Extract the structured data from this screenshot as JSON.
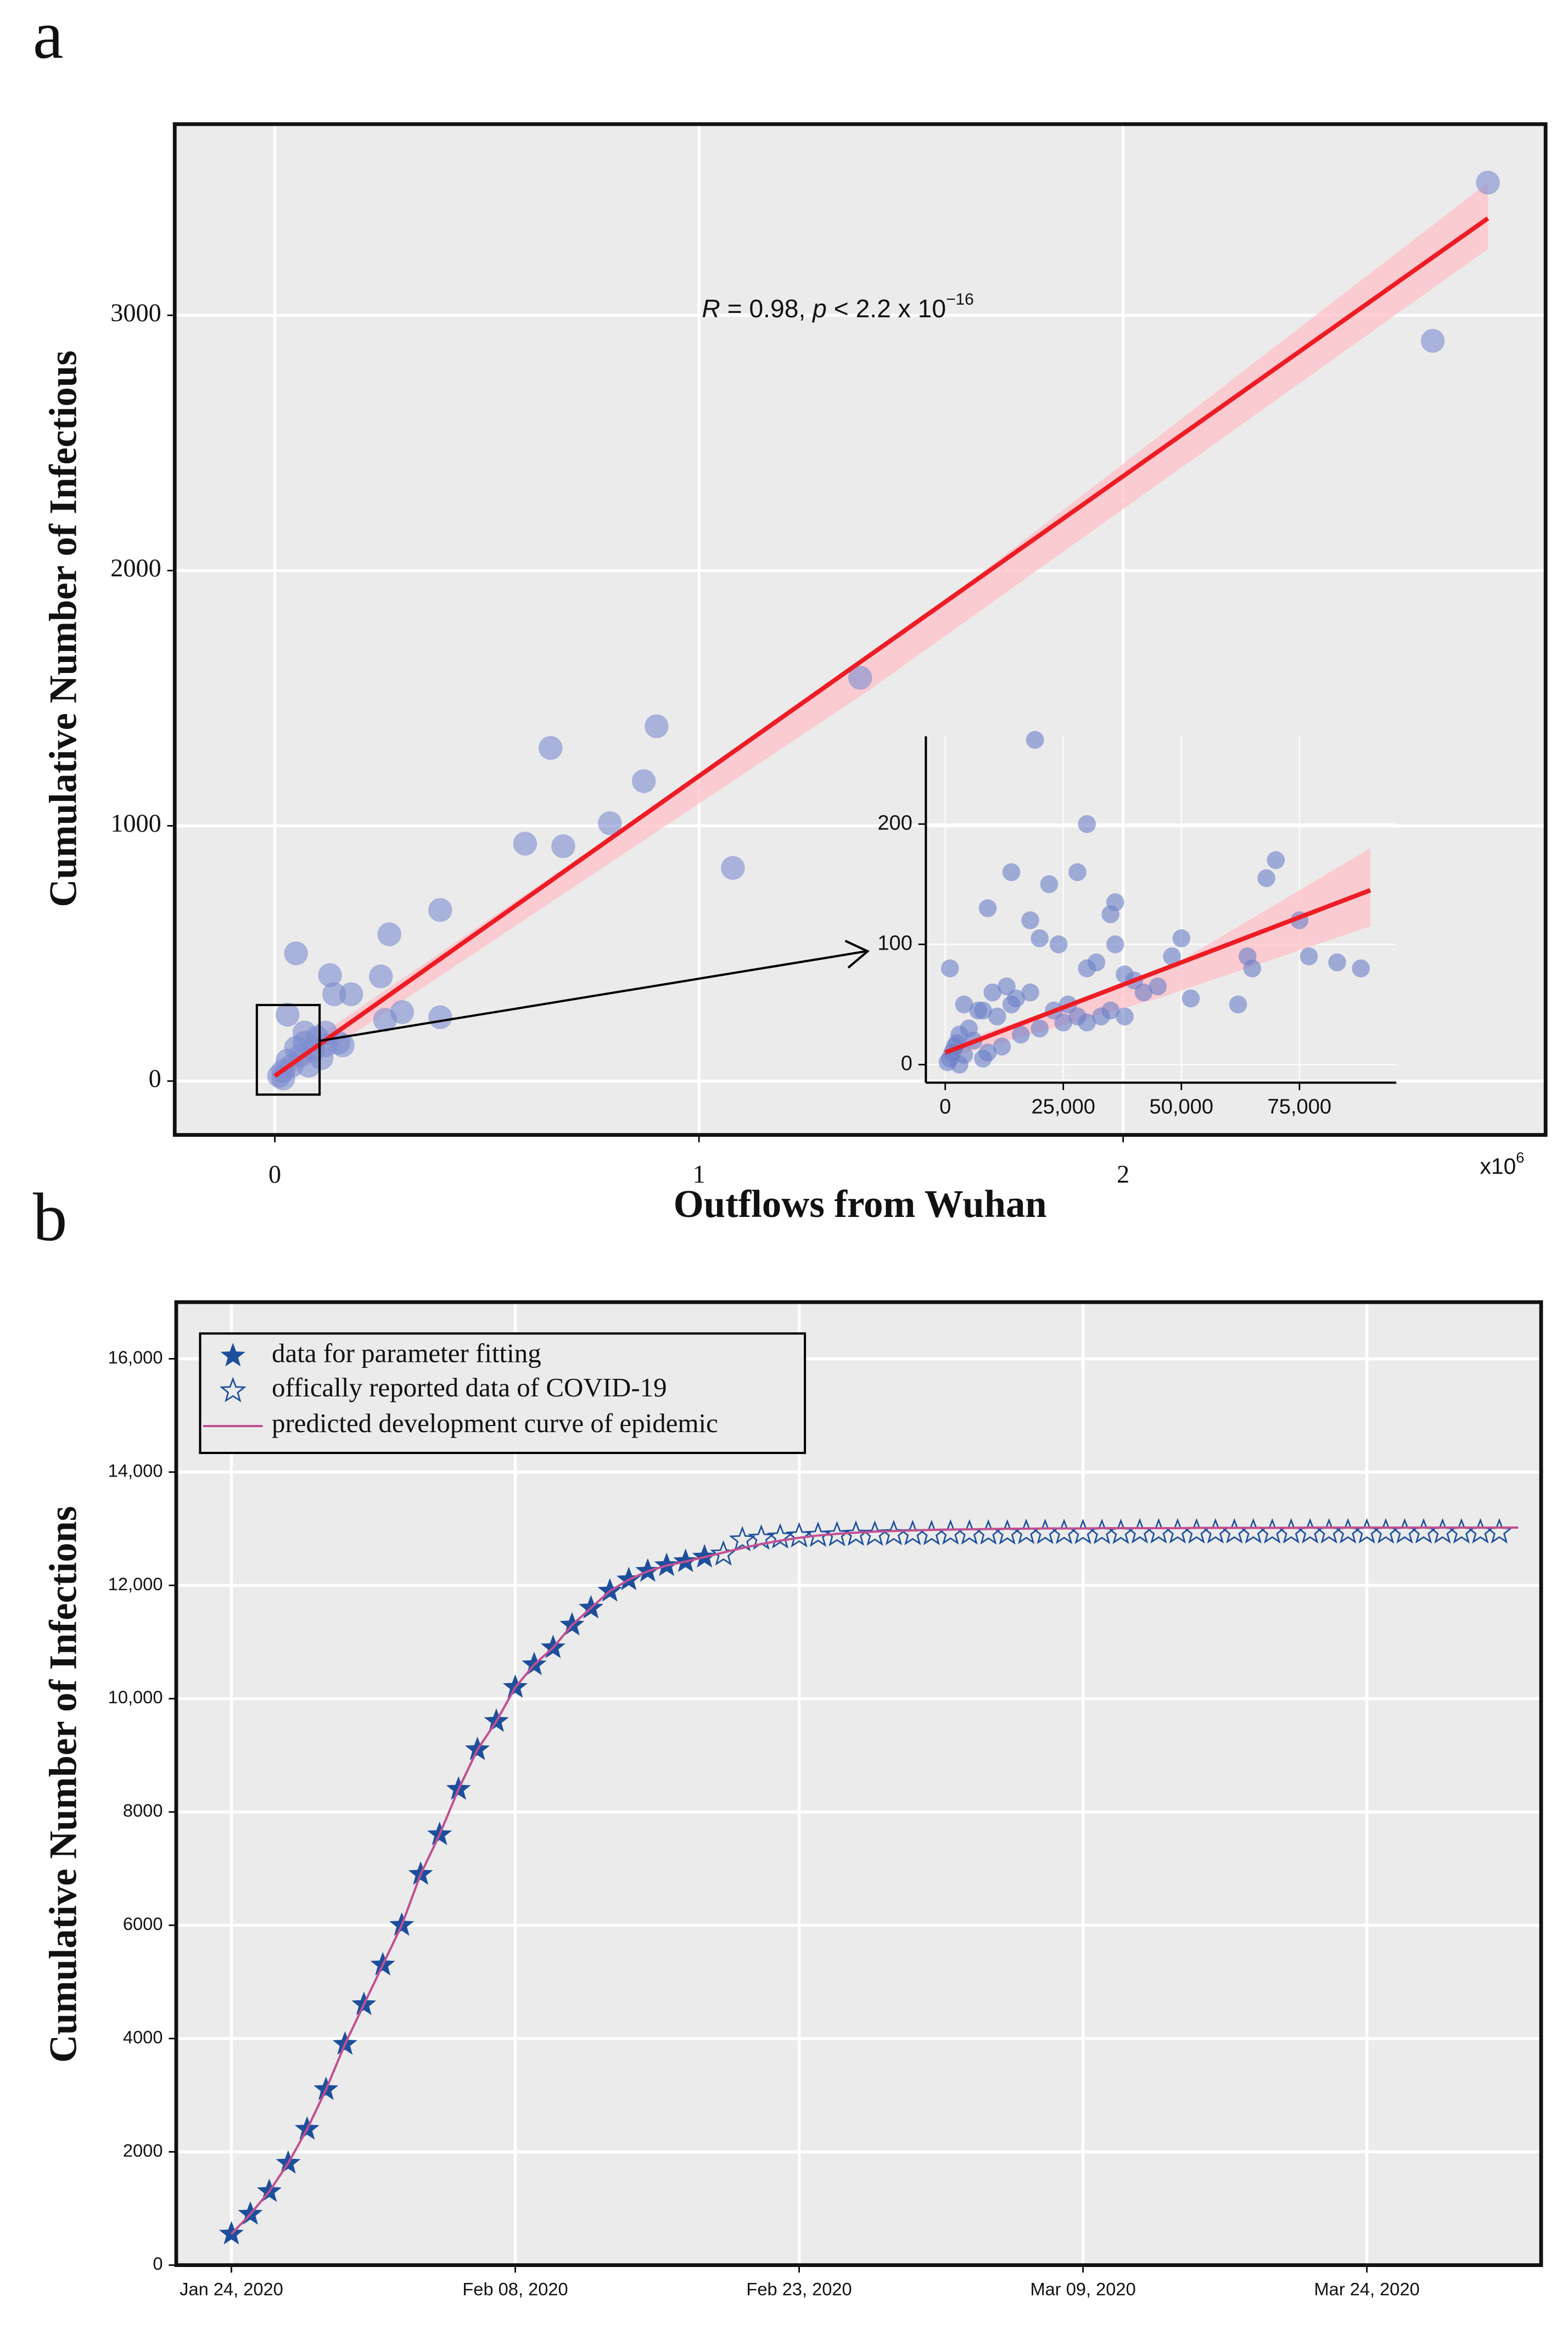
{
  "chart_data": [
    {
      "type": "scatter",
      "panel": "a",
      "x_label": "Outflows from Wuhan",
      "y_label": "Cumulative Number of Infectious",
      "x_multiplier": "x10",
      "x_multiplier_exp": "6",
      "annotation": [
        "R",
        " = 0.98, ",
        "p",
        " < 2.2 x 10",
        "−16"
      ],
      "x": [
        2.86,
        2.73,
        1.38,
        0.9,
        0.65,
        0.87,
        0.79,
        1.08,
        0.59,
        0.68,
        0.39,
        0.27,
        0.05,
        0.13,
        0.25,
        0.18,
        0.14,
        0.3,
        0.26,
        0.39,
        0.03,
        0.07,
        0.12,
        0.15,
        0.1,
        0.05,
        0.03,
        0.02,
        0.01,
        0.06,
        0.08,
        0.12,
        0.09,
        0.04,
        0.02,
        0.11,
        0.07,
        0.16
      ],
      "values": [
        3520,
        2900,
        1580,
        1390,
        1305,
        1175,
        1010,
        835,
        930,
        920,
        670,
        575,
        500,
        415,
        410,
        340,
        340,
        270,
        240,
        250,
        260,
        190,
        190,
        150,
        170,
        130,
        80,
        40,
        20,
        100,
        60,
        140,
        120,
        60,
        10,
        90,
        150,
        140
      ],
      "color": "#7b8ccf",
      "fit": {
        "x": [
          0,
          2.86
        ],
        "y": [
          20,
          3380
        ],
        "color": "#ee1c25"
      },
      "band": {
        "x": [
          0,
          1.4,
          2.86
        ],
        "upper": [
          60,
          1650,
          3520
        ],
        "lower": [
          -20,
          1530,
          3260
        ],
        "color": "#ffc0c8"
      },
      "xlim": [
        -0.236,
        2.996
      ],
      "ylim": [
        -211,
        3749
      ],
      "xticks": [
        0,
        1,
        2
      ],
      "yticks": [
        0,
        1000,
        2000,
        3000
      ],
      "grid": true,
      "background": "#ebebeb",
      "frame": true
    },
    {
      "type": "scatter",
      "x": [
        1000,
        4000,
        8000,
        9000,
        14000,
        19000,
        22000,
        28000,
        20000,
        24000,
        18000,
        30000,
        36000,
        35000,
        32000,
        30000,
        36000,
        38000,
        40000,
        50000,
        48000,
        45000,
        52000,
        70000,
        68000,
        64000,
        65000,
        75000,
        88000,
        83000,
        77000,
        62000,
        42000,
        35000,
        33000,
        30000,
        38000,
        26000,
        23000,
        18000,
        15000,
        13000,
        10000,
        7000,
        5000,
        3000,
        2000,
        1000,
        500,
        1500,
        6000,
        9000,
        12000,
        16000,
        20000,
        25000,
        28000,
        11000,
        14000,
        4000,
        8000,
        3000,
        2500
      ],
      "values": [
        80,
        50,
        45,
        130,
        160,
        270,
        150,
        160,
        105,
        100,
        120,
        200,
        135,
        125,
        85,
        80,
        100,
        75,
        70,
        105,
        90,
        65,
        55,
        170,
        155,
        90,
        80,
        120,
        80,
        85,
        90,
        50,
        60,
        45,
        40,
        35,
        40,
        50,
        45,
        60,
        55,
        65,
        60,
        45,
        30,
        25,
        15,
        5,
        2,
        10,
        20,
        10,
        15,
        25,
        30,
        35,
        40,
        40,
        50,
        8,
        5,
        0,
        18
      ],
      "color": "#6b7fc8",
      "fit": {
        "x": [
          0,
          90000
        ],
        "y": [
          10,
          145
        ],
        "color": "#ee1c25"
      },
      "band": {
        "x": [
          0,
          45000,
          90000
        ],
        "upper": [
          15,
          75,
          180
        ],
        "lower": [
          5,
          55,
          115
        ],
        "color": "#ffc0c8"
      },
      "xlim": [
        -4100,
        95500
      ],
      "ylim": [
        -15,
        273
      ],
      "xticks": [
        0,
        {
          "value": 25000,
          "label": "25,000"
        },
        {
          "value": 50000,
          "label": "50,000"
        },
        {
          "value": 75000,
          "label": "75,000"
        }
      ],
      "yticks": [
        0,
        100,
        200
      ],
      "grid": true,
      "frame": false
    },
    {
      "type": "line",
      "panel": "b",
      "y_label": "Cumulative Number of Infections",
      "x": [
        "2020-01-24",
        "2020-01-25",
        "2020-01-26",
        "2020-01-27",
        "2020-01-28",
        "2020-01-29",
        "2020-01-30",
        "2020-01-31",
        "2020-02-01",
        "2020-02-02",
        "2020-02-03",
        "2020-02-04",
        "2020-02-05",
        "2020-02-06",
        "2020-02-07",
        "2020-02-08",
        "2020-02-09",
        "2020-02-10",
        "2020-02-11",
        "2020-02-12",
        "2020-02-13",
        "2020-02-14",
        "2020-02-15",
        "2020-02-16",
        "2020-02-17",
        "2020-02-18",
        "2020-02-19",
        "2020-02-20",
        "2020-02-21",
        "2020-02-22",
        "2020-02-23",
        "2020-02-24",
        "2020-02-25",
        "2020-02-26",
        "2020-02-27",
        "2020-02-28",
        "2020-02-29",
        "2020-03-01",
        "2020-03-02",
        "2020-03-03",
        "2020-03-04",
        "2020-03-05",
        "2020-03-06",
        "2020-03-07",
        "2020-03-08",
        "2020-03-09",
        "2020-03-10",
        "2020-03-11",
        "2020-03-12",
        "2020-03-13",
        "2020-03-14",
        "2020-03-15",
        "2020-03-16",
        "2020-03-17",
        "2020-03-18",
        "2020-03-19",
        "2020-03-20",
        "2020-03-21",
        "2020-03-22",
        "2020-03-23",
        "2020-03-24",
        "2020-03-25",
        "2020-03-26",
        "2020-03-27",
        "2020-03-28",
        "2020-03-29",
        "2020-03-30",
        "2020-03-31",
        "2020-04-01"
      ],
      "series": [
        {
          "name": "data for parameter fitting",
          "color": "#1c4f9c",
          "marker": "star-filled",
          "values": [
            550,
            900,
            1300,
            1800,
            2400,
            3100,
            3900,
            4600,
            5300,
            6000,
            6900,
            7600,
            8400,
            9100,
            9600,
            10200,
            10600,
            10900,
            11300,
            11600,
            11900,
            12100,
            12250,
            12350,
            12420,
            12500,
            null,
            null,
            null,
            null,
            null,
            null,
            null,
            null,
            null,
            null,
            null,
            null,
            null,
            null,
            null,
            null,
            null,
            null,
            null,
            null,
            null,
            null,
            null,
            null,
            null,
            null,
            null,
            null,
            null,
            null,
            null,
            null,
            null,
            null,
            null,
            null,
            null,
            null,
            null,
            null,
            null,
            null,
            null
          ]
        },
        {
          "name": "offically reported data of COVID-19",
          "color": "#1c4f9c",
          "marker": "star-open",
          "values": [
            null,
            null,
            null,
            null,
            null,
            null,
            null,
            null,
            null,
            null,
            null,
            null,
            null,
            null,
            null,
            null,
            null,
            null,
            null,
            null,
            null,
            null,
            null,
            null,
            null,
            null,
            12550,
            12800,
            12830,
            12850,
            12870,
            12880,
            12890,
            12900,
            12900,
            12910,
            12910,
            12910,
            12920,
            12920,
            12920,
            12920,
            12930,
            12930,
            12930,
            12930,
            12930,
            12930,
            12940,
            12940,
            12940,
            12940,
            12940,
            12940,
            12940,
            12940,
            12940,
            12940,
            12940,
            12940,
            12940,
            12940,
            12940,
            12940,
            12940,
            12940,
            12940,
            12940,
            null
          ]
        },
        {
          "name": "predicted development curve of epidemic",
          "color": "#c24f92",
          "marker": "line",
          "values": [
            550,
            900,
            1300,
            1800,
            2400,
            3100,
            3900,
            4600,
            5300,
            6000,
            6900,
            7600,
            8400,
            9100,
            9600,
            10200,
            10600,
            10900,
            11300,
            11600,
            11900,
            12100,
            12250,
            12350,
            12420,
            12500,
            12580,
            12660,
            12730,
            12790,
            12840,
            12880,
            12910,
            12930,
            12950,
            12960,
            12970,
            12980,
            12985,
            12990,
            12995,
            13000,
            13000,
            13005,
            13005,
            13005,
            13010,
            13010,
            13010,
            13010,
            13010,
            13015,
            13015,
            13015,
            13015,
            13015,
            13015,
            13020,
            13020,
            13020,
            13020,
            13020,
            13020,
            13020,
            13020,
            13020,
            13020,
            13020,
            13020
          ]
        }
      ],
      "xlim": [
        "2020-01-21T02:00",
        "2020-04-02T05:00"
      ],
      "ylim": [
        0,
        17000
      ],
      "xticks": [
        {
          "value": "2020-01-24",
          "label": "Jan 24, 2020"
        },
        {
          "value": "2020-02-08",
          "label": "Feb 08, 2020"
        },
        {
          "value": "2020-02-23",
          "label": "Feb 23, 2020"
        },
        {
          "value": "2020-03-09",
          "label": "Mar 09, 2020"
        },
        {
          "value": "2020-03-24",
          "label": "Mar 24, 2020"
        }
      ],
      "yticks": [
        0,
        2000,
        4000,
        6000,
        8000,
        {
          "value": 10000,
          "label": "10,000"
        },
        {
          "value": 12000,
          "label": "12,000"
        },
        {
          "value": 14000,
          "label": "14,000"
        },
        {
          "value": 16000,
          "label": "16,000"
        }
      ],
      "grid": true,
      "background": "#ebebeb",
      "frame": true
    }
  ]
}
